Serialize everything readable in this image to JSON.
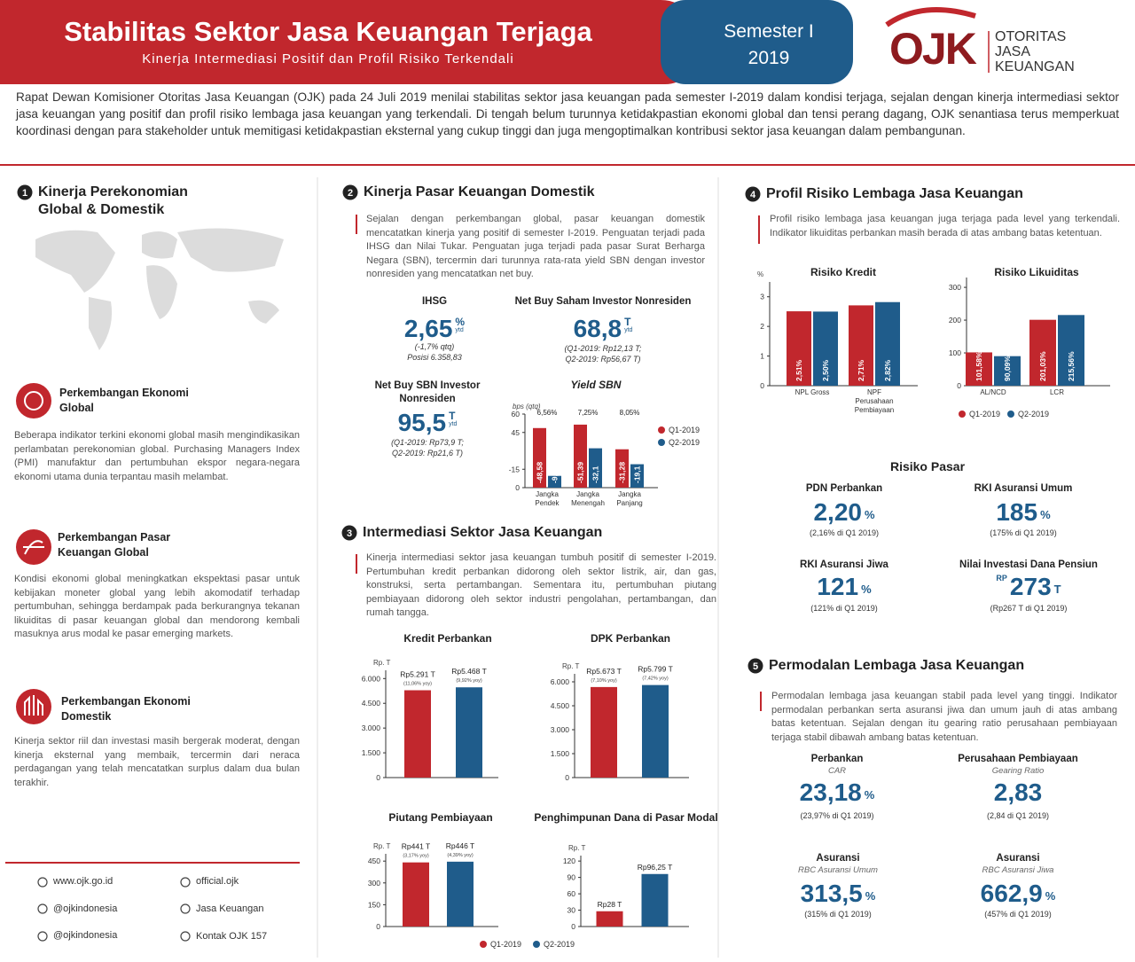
{
  "header": {
    "title": "Stabilitas Sektor Jasa Keuangan Terjaga",
    "subtitle": "Kinerja Intermediasi Positif dan Profil Risiko Terkendali",
    "semester": "Semester I",
    "year": "2019"
  },
  "logo": {
    "mark": "OJK",
    "lines": [
      "OTORITAS",
      "JASA",
      "KEUANGAN"
    ]
  },
  "intro": "Rapat Dewan Komisioner Otoritas Jasa Keuangan (OJK) pada 24 Juli 2019 menilai stabilitas sektor jasa keuangan pada semester I-2019 dalam kondisi terjaga, sejalan dengan kinerja intermediasi sektor jasa keuangan yang positif dan profil risiko lembaga jasa keuangan yang terkendali. Di tengah belum turunnya ketidakpastian ekonomi global dan tensi perang dagang, OJK senantiasa terus memperkuat koordinasi dengan para stakeholder untuk memitigasi ketidakpastian eksternal yang cukup tinggi dan juga mengoptimalkan kontribusi sektor jasa keuangan dalam pembangunan.",
  "section1": {
    "number": "1",
    "title": "Kinerja Perekonomian Global & Domestik",
    "items": [
      {
        "title": "Perkembangan Ekonomi Global",
        "text": "Beberapa indikator terkini ekonomi global masih mengindikasikan perlambatan perekonomian global. Purchasing Managers Index (PMI) manufaktur dan pertumbuhan ekspor negara-negara ekonomi utama dunia terpantau masih melambat."
      },
      {
        "title": "Perkembangan Pasar Keuangan Global",
        "text": "Kondisi ekonomi global meningkatkan ekspektasi pasar untuk kebijakan moneter global yang lebih akomodatif terhadap pertumbuhan, sehingga berdampak pada berkurangnya tekanan likuiditas di pasar keuangan global dan mendorong kembali masuknya arus modal ke pasar emerging markets."
      },
      {
        "title": "Perkembangan Ekonomi Domestik",
        "text": "Kinerja sektor riil dan investasi masih bergerak moderat, dengan kinerja eksternal yang membaik, tercermin dari neraca perdagangan yang telah mencatatkan surplus dalam dua bulan terakhir."
      }
    ]
  },
  "footer": {
    "contacts": [
      "www.ojk.go.id",
      "official.ojk",
      "@ojkindonesia",
      "Jasa Keuangan",
      "@ojkindonesia",
      "Kontak OJK 157"
    ]
  },
  "section2": {
    "number": "2",
    "title": "Kinerja Pasar Keuangan Domestik",
    "text": "Sejalan dengan perkembangan global, pasar keuangan domestik mencatatkan kinerja yang positif di semester I-2019. Penguatan terjadi pada IHSG dan Nilai Tukar. Penguatan juga terjadi pada pasar Surat Berharga Negara (SBN), tercermin dari turunnya rata-rata yield SBN dengan investor nonresiden yang mencatatkan net buy.",
    "metrics": [
      {
        "label": "IHSG",
        "value": "2,65",
        "unit": "%",
        "unit2": "ytd",
        "notes": [
          "(-1,7% qtq)",
          "Posisi 6.358,83"
        ]
      },
      {
        "label": "Net Buy Saham Investor Nonresiden",
        "value": "68,8",
        "unit": "T",
        "unit2": "ytd",
        "notes": [
          "(Q1-2019: Rp12,13 T;",
          "Q2-2019: Rp56,67 T)"
        ]
      },
      {
        "label": "Net Buy SBN Investor Nonresiden",
        "value": "95,5",
        "unit": "T",
        "unit2": "ytd",
        "notes": [
          "(Q1-2019: Rp73,9 T;",
          "Q2-2019: Rp21,6 T)"
        ]
      }
    ],
    "yield_sbn": {
      "type": "bar",
      "title": "Yield SBN",
      "ylabel": "bps (qtq)",
      "categories": [
        "Jangka Pendek",
        "Jangka Menengah",
        "Jangka Panjang"
      ],
      "annotations": [
        "6,56%",
        "7,25%",
        "8,05%"
      ],
      "series": [
        {
          "values": [
            -48.58,
            -51.39,
            -31.28
          ],
          "value_labels": [
            "-48,58",
            "-51,39",
            "-31,28"
          ]
        },
        {
          "values": [
            -9.6,
            -32.1,
            -19.1
          ],
          "value_labels": [
            "-9,6",
            "-32,1",
            "-19,1"
          ]
        }
      ],
      "ylim": [
        0,
        -60
      ],
      "yticks": [
        {
          "value": -60,
          "label": "60"
        },
        {
          "value": -45,
          "label": "45"
        },
        -15,
        0
      ],
      "legend": [
        {
          "name": "Q1-2019",
          "color": "#c1272d"
        },
        {
          "name": "Q2-2019",
          "color": "#1f5c8b"
        }
      ]
    }
  },
  "section3": {
    "number": "3",
    "title": "Intermediasi Sektor Jasa Keuangan",
    "text": "Kinerja intermediasi sektor jasa keuangan tumbuh positif di semester I-2019. Pertumbuhan kredit perbankan didorong oleh sektor listrik, air, dan gas, konstruksi, serta pertambangan. Sementara itu, pertumbuhan piutang pembiayaan didorong oleh sektor industri pengolahan, pertambangan, dan rumah tangga.",
    "charts": [
      {
        "type": "bar",
        "title": "Kredit Perbankan",
        "ylabel": "Rp. T",
        "ylim": [
          0,
          6500
        ],
        "yticks": [
          0,
          {
            "value": 1500,
            "label": "1.500"
          },
          {
            "value": 3000,
            "label": "3.000"
          },
          {
            "value": 4500,
            "label": "4.500"
          },
          {
            "value": 6000,
            "label": "6.000"
          }
        ],
        "series": [
          {
            "values": [
              5291
            ],
            "value_labels": [
              "Rp5.291 T"
            ],
            "notes": [
              "(11,06% yoy)"
            ]
          },
          {
            "values": [
              5468
            ],
            "value_labels": [
              "Rp5.468 T"
            ],
            "notes": [
              "(9,92% yoy)"
            ]
          }
        ]
      },
      {
        "type": "bar",
        "title": "DPK Perbankan",
        "ylabel": "Rp. T",
        "ylim": [
          0,
          6500
        ],
        "yticks": [
          0,
          {
            "value": 1500,
            "label": "1.500"
          },
          {
            "value": 3000,
            "label": "3.000"
          },
          {
            "value": 4500,
            "label": "4.500"
          },
          {
            "value": 6000,
            "label": "6.000"
          }
        ],
        "series": [
          {
            "values": [
              5673
            ],
            "value_labels": [
              "Rp5.673 T"
            ],
            "notes": [
              "(7,10% yoy)"
            ]
          },
          {
            "values": [
              5799
            ],
            "value_labels": [
              "Rp5.799 T"
            ],
            "notes": [
              "(7,42% yoy)"
            ]
          }
        ]
      },
      {
        "type": "bar",
        "title": "Piutang Pembiayaan",
        "ylabel": "Rp. T",
        "ylim": [
          0,
          500
        ],
        "yticks": [
          0,
          150,
          300,
          450
        ],
        "series": [
          {
            "values": [
              441
            ],
            "value_labels": [
              "Rp441 T"
            ],
            "notes": [
              "(3,17% yoy)"
            ]
          },
          {
            "values": [
              446
            ],
            "value_labels": [
              "Rp446 T"
            ],
            "notes": [
              "(4,39% yoy)"
            ]
          }
        ]
      },
      {
        "type": "bar",
        "title": "Penghimpunan Dana di Pasar Modal",
        "ylabel": "Rp. T",
        "ylim": [
          0,
          130
        ],
        "yticks": [
          0,
          30,
          60,
          90,
          120
        ],
        "series": [
          {
            "values": [
              28
            ],
            "value_labels": [
              "Rp28 T"
            ]
          },
          {
            "values": [
              96.25
            ],
            "value_labels": [
              "Rp96,25 T"
            ]
          }
        ]
      }
    ],
    "legend": [
      {
        "name": "Q1-2019",
        "color": "#c1272d"
      },
      {
        "name": "Q2-2019",
        "color": "#1f5c8b"
      }
    ]
  },
  "section4": {
    "number": "4",
    "title": "Profil Risiko Lembaga Jasa Keuangan",
    "text": "Profil risiko lembaga jasa keuangan juga terjaga pada level yang terkendali. Indikator likuiditas perbankan masih berada di atas ambang batas ketentuan.",
    "charts": [
      {
        "type": "bar",
        "title": "Risiko Kredit",
        "ylabel": "%",
        "categories": [
          "NPL Gross",
          "NPF Perusahaan Pembiayaan"
        ],
        "ylim": [
          0,
          3.5
        ],
        "yticks": [
          0,
          1,
          2,
          3
        ],
        "series": [
          {
            "values": [
              2.51,
              2.71
            ],
            "value_labels": [
              "2,51%",
              "2,71%"
            ]
          },
          {
            "values": [
              2.5,
              2.82
            ],
            "value_labels": [
              "2,50%",
              "2,82%"
            ]
          }
        ]
      },
      {
        "type": "bar",
        "title": "Risiko Likuiditas",
        "categories": [
          "AL/NCD",
          "LCR"
        ],
        "ylim": [
          0,
          330
        ],
        "yticks": [
          0,
          100,
          200,
          300
        ],
        "series": [
          {
            "values": [
              101.58,
              201.03
            ],
            "value_labels": [
              "101,58%",
              "201,03%"
            ]
          },
          {
            "values": [
              90.09,
              215.56
            ],
            "value_labels": [
              "90,09%",
              "215,56%"
            ]
          }
        ]
      }
    ],
    "legend": [
      {
        "name": "Q1-2019",
        "color": "#c1272d"
      },
      {
        "name": "Q2-2019",
        "color": "#1f5c8b"
      }
    ],
    "market_title": "Risiko Pasar",
    "metrics": [
      {
        "label": "PDN Perbankan",
        "value": "2,20",
        "unit": "%",
        "notes": [
          "(2,16% di Q1 2019)"
        ]
      },
      {
        "label": "RKI Asuransi Umum",
        "value": "185",
        "unit": "%",
        "notes": [
          "(175% di Q1 2019)"
        ]
      },
      {
        "label": "RKI Asuransi Jiwa",
        "value": "121",
        "unit": "%",
        "notes": [
          "(121% di Q1 2019)"
        ]
      },
      {
        "label": "Nilai Investasi Dana Pensiun",
        "prefix": "RP",
        "value": "273",
        "unit": "T",
        "notes": [
          "(Rp267 T di Q1 2019)"
        ]
      }
    ]
  },
  "section5": {
    "number": "5",
    "title": "Permodalan Lembaga Jasa Keuangan",
    "text": "Permodalan lembaga jasa keuangan stabil pada level yang tinggi. Indikator permodalan perbankan serta asuransi jiwa dan umum jauh di atas ambang batas ketentuan. Sejalan dengan itu gearing ratio perusahaan pembiayaan terjaga stabil dibawah ambang batas ketentuan.",
    "metrics": [
      {
        "label": "Perbankan",
        "sublabel": "CAR",
        "value": "23,18",
        "unit": "%",
        "notes": [
          "(23,97% di Q1 2019)"
        ]
      },
      {
        "label": "Perusahaan Pembiayaan",
        "sublabel": "Gearing Ratio",
        "value": "2,83",
        "notes": [
          "(2,84 di Q1 2019)"
        ]
      },
      {
        "label": "Asuransi",
        "sublabel": "RBC Asuransi Umum",
        "value": "313,5",
        "unit": "%",
        "notes": [
          "(315% di Q1 2019)"
        ]
      },
      {
        "label": "Asuransi",
        "sublabel": "RBC Asuransi Jiwa",
        "value": "662,9",
        "unit": "%",
        "notes": [
          "(457% di Q1 2019)"
        ]
      }
    ]
  }
}
